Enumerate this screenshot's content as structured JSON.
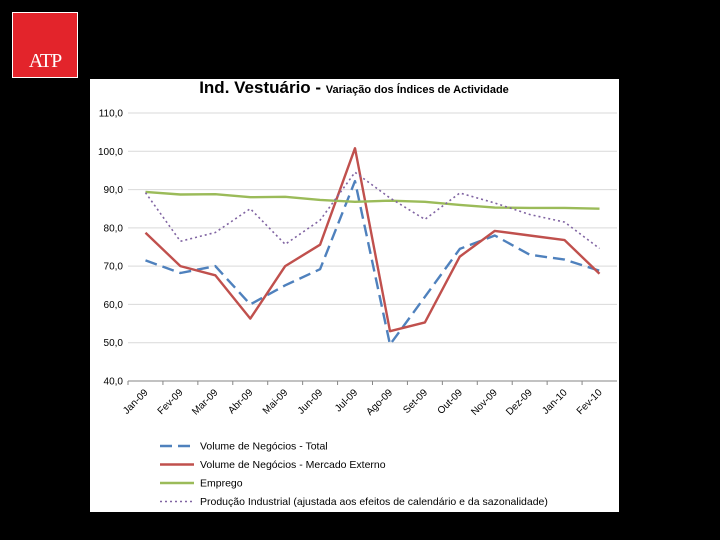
{
  "logo": {
    "text": "ATP"
  },
  "chart_data": {
    "type": "line",
    "title_main": "Ind. Vestuário - ",
    "title_sub": "Variação dos Índices de Actividade",
    "categories": [
      "Jan-09",
      "Fev-09",
      "Mar-09",
      "Abr-09",
      "Mai-09",
      "Jun-09",
      "Jul-09",
      "Ago-09",
      "Set-09",
      "Out-09",
      "Nov-09",
      "Dez-09",
      "Jan-10",
      "Fev-10"
    ],
    "ylim": [
      40,
      110
    ],
    "yticks": [
      40,
      50,
      60,
      70,
      80,
      90,
      100,
      110
    ],
    "ytick_labels": [
      "40,0",
      "50,0",
      "60,0",
      "70,0",
      "80,0",
      "90,0",
      "100,0",
      "110,0"
    ],
    "grid": true,
    "series": [
      {
        "name": "Volume de Negócios - Total",
        "color": "#4f81bd",
        "dash": "dashed",
        "values": [
          71.5,
          68.2,
          70.0,
          60.0,
          65.0,
          69.2,
          92.2,
          49.5,
          62.0,
          74.5,
          78.0,
          73.0,
          71.7,
          68.8
        ]
      },
      {
        "name": "Volume de Negócios - Mercado Externo",
        "color": "#c0504d",
        "dash": "solid",
        "values": [
          78.7,
          70.0,
          67.6,
          56.3,
          70.0,
          75.6,
          100.8,
          53.0,
          55.3,
          72.5,
          79.2,
          78.0,
          76.8,
          68.0
        ]
      },
      {
        "name": "Emprego",
        "color": "#9bbb59",
        "dash": "solid",
        "values": [
          89.4,
          88.7,
          88.8,
          88.0,
          88.1,
          87.3,
          86.8,
          87.1,
          86.8,
          86.0,
          85.3,
          85.2,
          85.2,
          85.0
        ]
      },
      {
        "name": "Produção Industrial (ajustada aos efeitos de calendário e da sazonalidade)",
        "color": "#8064a2",
        "dash": "dotted",
        "values": [
          89.2,
          76.5,
          78.8,
          85.0,
          75.7,
          82.0,
          94.5,
          87.8,
          82.2,
          89.1,
          86.5,
          83.5,
          81.5,
          74.6
        ]
      }
    ]
  }
}
